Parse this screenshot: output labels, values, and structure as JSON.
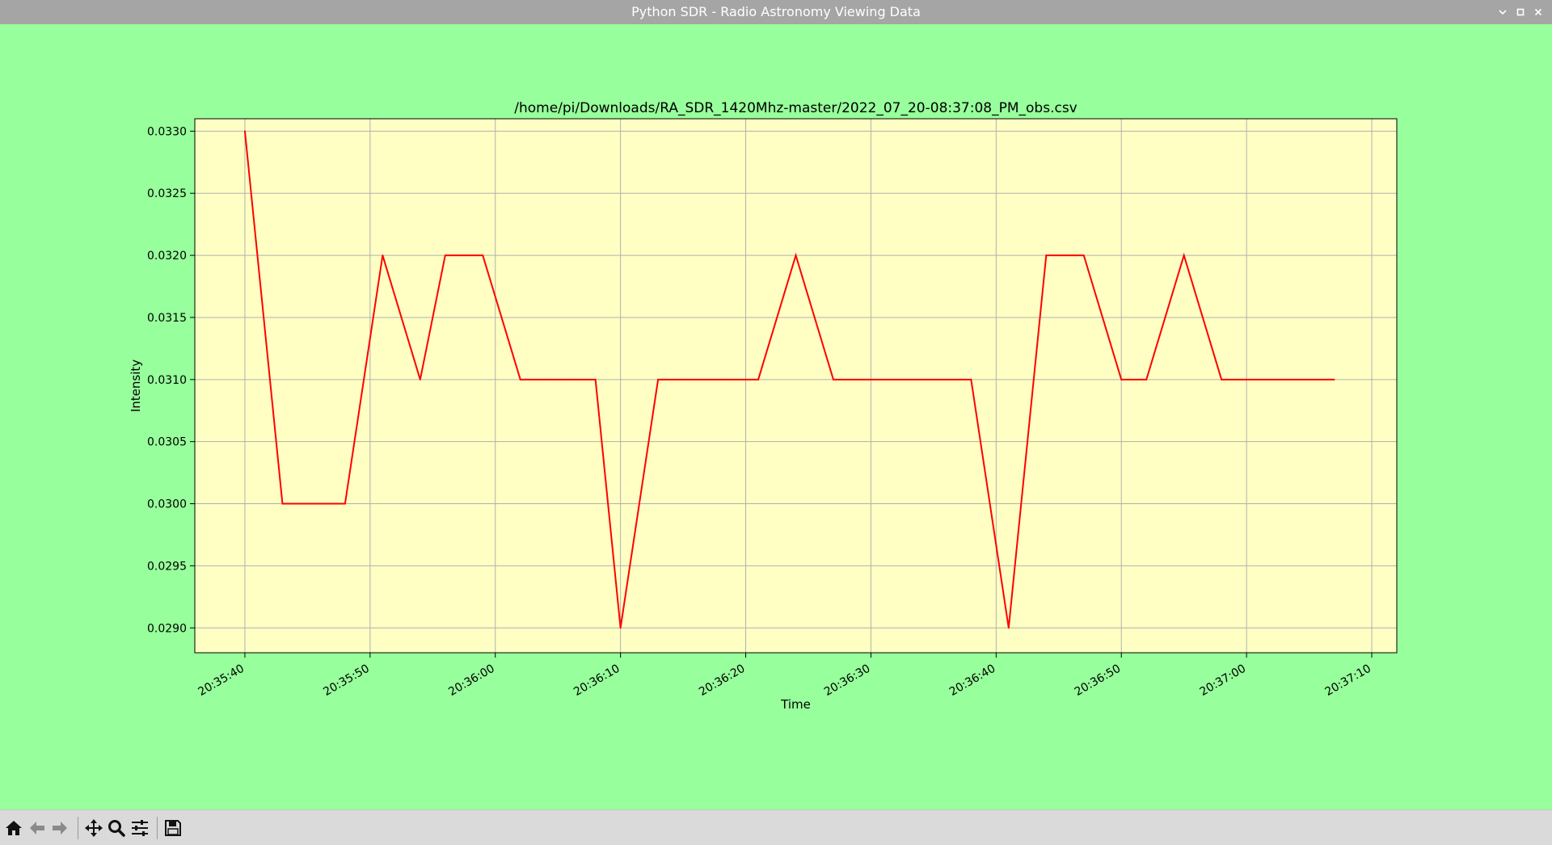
{
  "window": {
    "title": "Python SDR - Radio Astronomy Viewing Data",
    "controls": {
      "minimize_icon": "chevron-down-icon",
      "maximize_icon": "maximize-icon",
      "close_icon": "close-icon"
    }
  },
  "colors": {
    "canvas_bg": "#97ff9b",
    "plot_bg": "#ffffc4",
    "line": "#ff0000",
    "grid": "#b0b0b0",
    "titlebar": "#a5a5a5",
    "toolbar": "#dadada"
  },
  "toolbar": {
    "buttons": [
      {
        "name": "home-button",
        "icon": "home-icon"
      },
      {
        "name": "back-button",
        "icon": "arrow-left-icon"
      },
      {
        "name": "forward-button",
        "icon": "arrow-right-icon"
      },
      {
        "name": "pan-button",
        "icon": "move-icon"
      },
      {
        "name": "zoom-button",
        "icon": "magnifier-icon"
      },
      {
        "name": "configure-button",
        "icon": "sliders-icon"
      },
      {
        "name": "save-button",
        "icon": "floppy-icon"
      }
    ]
  },
  "chart_data": {
    "type": "line",
    "title": "/home/pi/Downloads/RA_SDR_1420Mhz-master/2022_07_20-08:37:08_PM_obs.csv",
    "xlabel": "Time",
    "ylabel": "Intensity",
    "x_is_time": true,
    "xlim": [
      "20:35:36",
      "20:37:12"
    ],
    "ylim": [
      0.0288,
      0.0331
    ],
    "xticks": [
      "20:35:40",
      "20:35:50",
      "20:36:00",
      "20:36:10",
      "20:36:20",
      "20:36:30",
      "20:36:40",
      "20:36:50",
      "20:37:00",
      "20:37:10"
    ],
    "yticks": [
      "0.0290",
      "0.0295",
      "0.0300",
      "0.0305",
      "0.0310",
      "0.0315",
      "0.0320",
      "0.0325",
      "0.0330"
    ],
    "grid": true,
    "series": [
      {
        "color": "#ff0000",
        "x": [
          "20:35:40",
          "20:35:43",
          "20:35:45",
          "20:35:48",
          "20:35:51",
          "20:35:54",
          "20:35:56",
          "20:35:59",
          "20:36:02",
          "20:36:04",
          "20:36:06",
          "20:36:08",
          "20:36:10",
          "20:36:13",
          "20:36:15",
          "20:36:18",
          "20:36:21",
          "20:36:24",
          "20:36:27",
          "20:36:29",
          "20:36:32",
          "20:36:35",
          "20:36:38",
          "20:36:41",
          "20:36:44",
          "20:36:47",
          "20:36:50",
          "20:36:52",
          "20:36:55",
          "20:36:58",
          "20:37:00",
          "20:37:03",
          "20:37:07"
        ],
        "y": [
          0.033,
          0.03,
          0.03,
          0.03,
          0.032,
          0.031,
          0.032,
          0.032,
          0.031,
          0.031,
          0.031,
          0.031,
          0.029,
          0.031,
          0.031,
          0.031,
          0.031,
          0.032,
          0.031,
          0.031,
          0.031,
          0.031,
          0.031,
          0.029,
          0.032,
          0.032,
          0.031,
          0.031,
          0.032,
          0.031,
          0.031,
          0.031,
          0.031
        ]
      }
    ]
  }
}
